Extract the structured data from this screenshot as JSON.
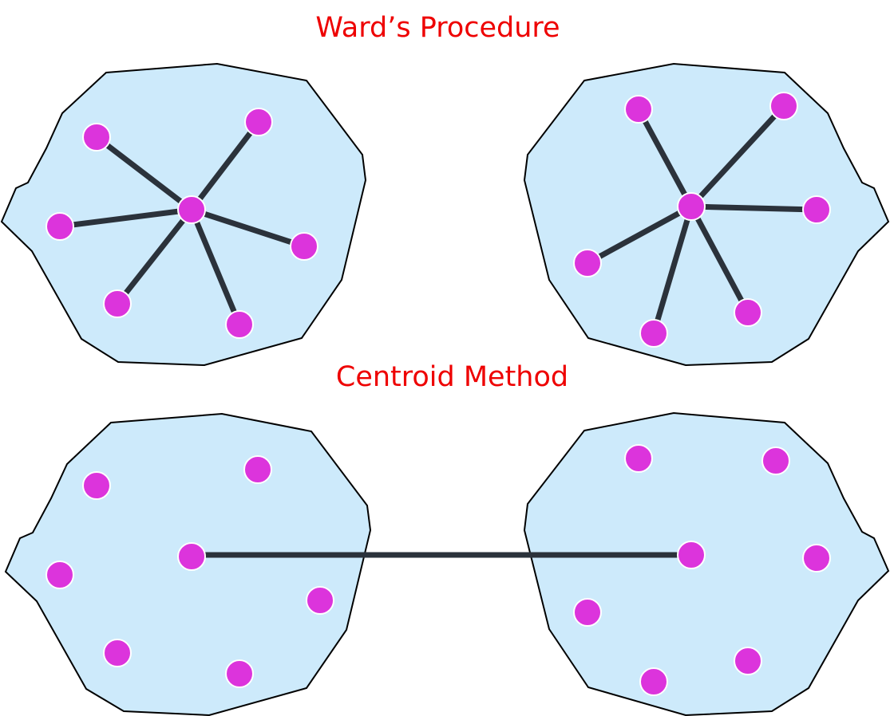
{
  "titles": {
    "top": "Ward’s Procedure",
    "bottom": "Centroid Method"
  },
  "colors": {
    "title": "#ee0000",
    "cluster_fill": "#cdeafb",
    "point": "#dc34dc",
    "link": "#2b323b"
  },
  "diagrams": [
    {
      "name": "wards-procedure",
      "method": "center-to-members"
    },
    {
      "name": "centroid-method",
      "method": "center-to-center"
    }
  ]
}
